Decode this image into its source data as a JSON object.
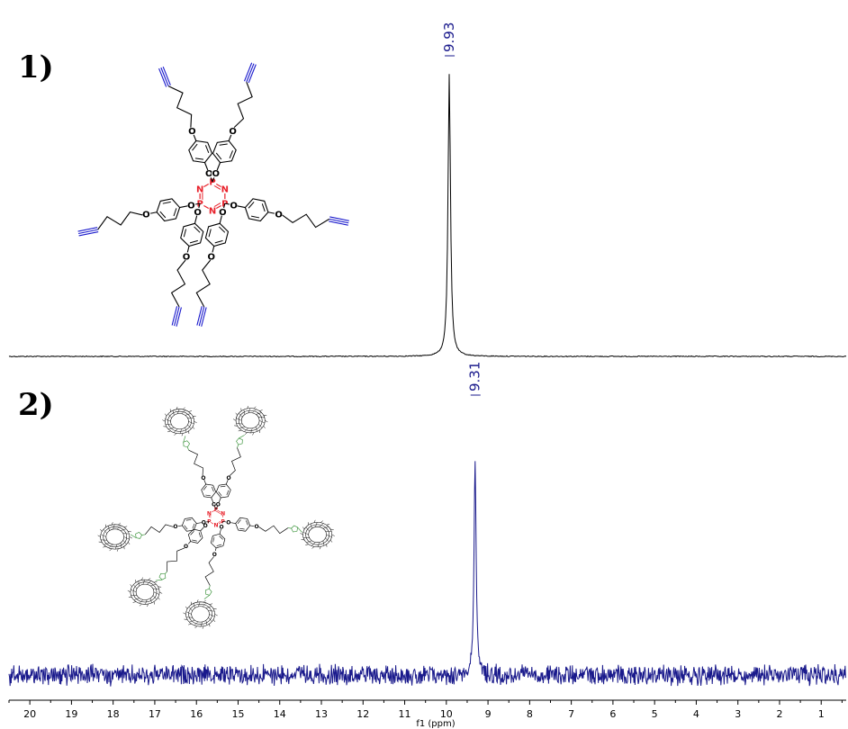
{
  "chart_data": {
    "type": "line",
    "panels": [
      {
        "label": "1)",
        "color": "#000000",
        "peak_ppm": 9.93,
        "peak_label": "9.93",
        "noise": "low"
      },
      {
        "label": "2)",
        "color": "#1a1a8c",
        "peak_ppm": 9.31,
        "peak_label": "9.31",
        "noise": "high"
      }
    ],
    "xlabel": "f1 (ppm)",
    "xlim": [
      20.5,
      0.4
    ],
    "x_ticks": [
      "20",
      "19",
      "18",
      "17",
      "16",
      "15",
      "14",
      "13",
      "12",
      "11",
      "10",
      "9",
      "8",
      "7",
      "6",
      "5",
      "4",
      "3",
      "2",
      "1"
    ],
    "x_reversed": true,
    "grid": false
  },
  "structure1": {
    "atoms": {
      "P": "P",
      "N": "N",
      "O": "O"
    }
  },
  "colors": {
    "phosphazene": "#e8202a",
    "alkyne": "#1a1acc",
    "triazole": "#2a8a2a",
    "spectrum2": "#1a1a8c"
  }
}
